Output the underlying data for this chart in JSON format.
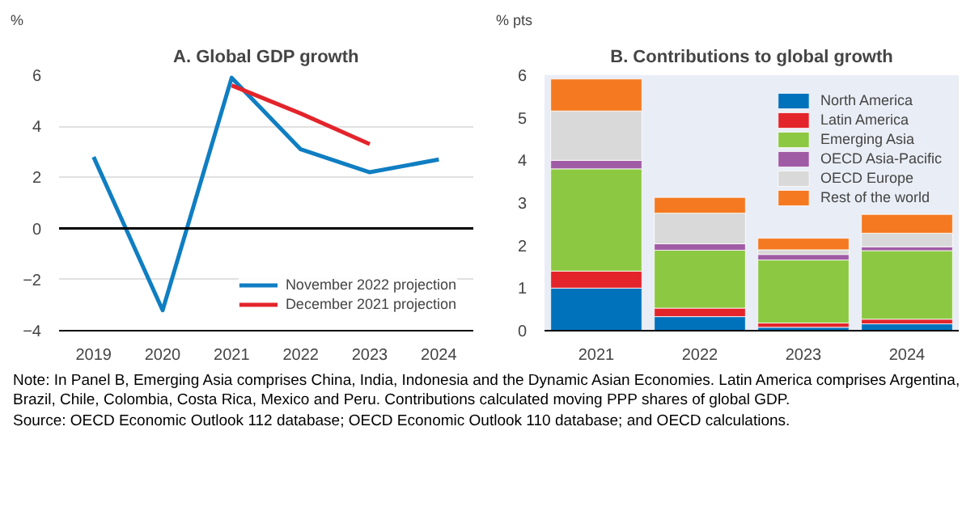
{
  "chart_data": [
    {
      "type": "line",
      "title": "A. Global GDP growth",
      "ylabel": "%",
      "categories": [
        "2019",
        "2020",
        "2021",
        "2022",
        "2023",
        "2024"
      ],
      "ylim": [
        -4,
        6
      ],
      "yticks": [
        -4,
        -2,
        0,
        2,
        4,
        6
      ],
      "grid": "y",
      "legend": "bottom right",
      "ref_lines": [
        {
          "axis": "y",
          "value": 0,
          "color": "#000000"
        }
      ],
      "series": [
        {
          "name": "November 2022 projection",
          "color": "#0f7ec2",
          "values": [
            2.8,
            -3.2,
            5.9,
            3.1,
            2.2,
            2.7
          ]
        },
        {
          "name": "December 2021 projection",
          "color": "#e3242b",
          "values": [
            null,
            null,
            5.6,
            4.5,
            3.3,
            null
          ]
        }
      ]
    },
    {
      "type": "bar",
      "stacked": true,
      "title": "B. Contributions to global growth",
      "ylabel": "% pts",
      "categories": [
        "2021",
        "2022",
        "2023",
        "2024"
      ],
      "ylim": [
        0,
        6
      ],
      "yticks": [
        0,
        1,
        2,
        3,
        4,
        5,
        6
      ],
      "grid": false,
      "legend": "top right",
      "series": [
        {
          "name": "North America",
          "color": "#0072bc",
          "values": [
            1.0,
            0.33,
            0.08,
            0.16
          ]
        },
        {
          "name": "Latin America",
          "color": "#e3242b",
          "values": [
            0.4,
            0.2,
            0.1,
            0.11
          ]
        },
        {
          "name": "Emerging Asia",
          "color": "#8cc841",
          "values": [
            2.4,
            1.36,
            1.48,
            1.61
          ]
        },
        {
          "name": "OECD Asia-Pacific",
          "color": "#a05ba5",
          "values": [
            0.2,
            0.15,
            0.13,
            0.09
          ]
        },
        {
          "name": "OECD Europe",
          "color": "#d9d9d9",
          "values": [
            1.16,
            0.72,
            0.11,
            0.32
          ]
        },
        {
          "name": "Rest of the world",
          "color": "#f47920",
          "values": [
            0.75,
            0.37,
            0.27,
            0.44
          ]
        }
      ],
      "annotations": [
        "Note: In Panel B, Emerging Asia comprises China, India, Indonesia and the Dynamic Asian Economies. Latin America comprises Argentina, Brazil, Chile, Colombia, Costa Rica, Mexico and Peru. Contributions calculated moving PPP shares of global GDP.",
        "Source: OECD Economic Outlook 112 database; OECD Economic Outlook 110 database; and OECD calculations."
      ]
    }
  ]
}
